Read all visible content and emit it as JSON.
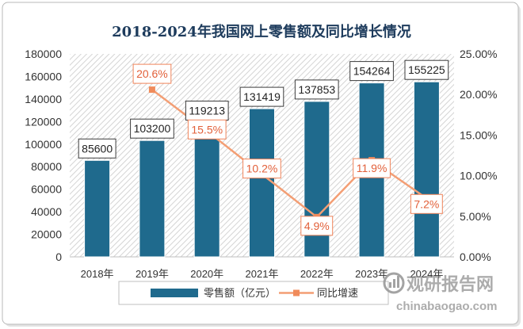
{
  "chart_data": {
    "type": "bar",
    "title": "2018-2024年我国网上零售额及同比增长情况",
    "categories": [
      "2018年",
      "2019年",
      "2020年",
      "2021年",
      "2022年",
      "2023年",
      "2024年"
    ],
    "series": [
      {
        "name": "零售额（亿元）",
        "type": "bar",
        "axis": "left",
        "color": "#1f6a8d",
        "values": [
          85600,
          103200,
          119213,
          131419,
          137853,
          154264,
          155225
        ]
      },
      {
        "name": "同比增速",
        "type": "line",
        "axis": "right",
        "unit": "%",
        "color": "#f39e74",
        "values": [
          null,
          20.6,
          15.5,
          10.2,
          4.9,
          11.9,
          7.2
        ]
      }
    ],
    "xlabel": "",
    "ylabel": "",
    "ylim": [
      0,
      180000
    ],
    "y2lim": [
      0,
      25
    ],
    "yticks": [
      "0",
      "20000",
      "40000",
      "60000",
      "80000",
      "100000",
      "120000",
      "140000",
      "160000",
      "180000"
    ],
    "y2ticks": [
      "0.00%",
      "5.00%",
      "10.00%",
      "15.00%",
      "20.00%",
      "25.00%"
    ],
    "grid": false,
    "legend": "bottom"
  },
  "watermark": {
    "brand": "观研报告网",
    "url": "chinabaogao.com"
  }
}
